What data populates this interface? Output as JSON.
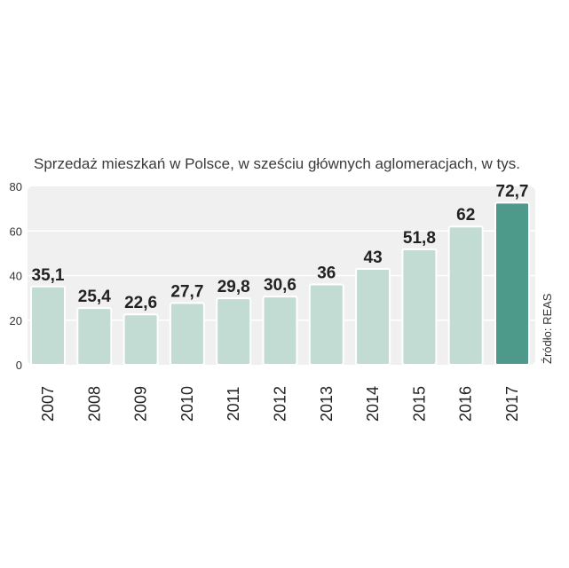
{
  "chart_data": {
    "type": "bar",
    "title": "Sprzedaż mieszkań w Polsce, w sześciu głównych aglomeracjach, w tys.",
    "source": "Źródło: REAS",
    "categories": [
      "2007",
      "2008",
      "2009",
      "2010",
      "2011",
      "2012",
      "2013",
      "2014",
      "2015",
      "2016",
      "2017"
    ],
    "values": [
      35.1,
      25.4,
      22.6,
      27.7,
      29.8,
      30.6,
      36,
      43,
      51.8,
      62,
      72.7
    ],
    "value_labels": [
      "35,1",
      "25,4",
      "22,6",
      "27,7",
      "29,8",
      "30,6",
      "36",
      "43",
      "51,8",
      "62",
      "72,7"
    ],
    "ylim": [
      0,
      80
    ],
    "yticks": [
      0,
      20,
      40,
      60,
      80
    ],
    "grid": true,
    "colors": {
      "bar": "#c3dcd3",
      "highlight_bar": "#4d9a8a",
      "plot_background": "#f0f0f0",
      "gridline": "#ffffff"
    },
    "highlight_category": "2017"
  }
}
